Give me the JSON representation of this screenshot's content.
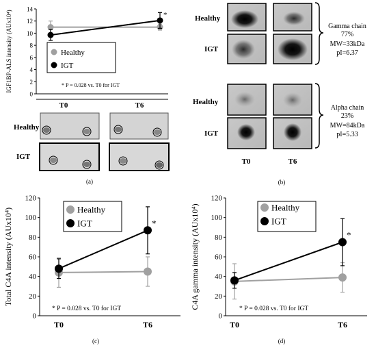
{
  "chart_data": [
    {
      "panel": "(a)",
      "type": "line",
      "ylabel": "IGF1BP-ALS intensity (AUx10⁴)",
      "ylim": [
        0,
        14
      ],
      "yticks": [
        "0",
        "2",
        "4",
        "6",
        "8",
        "10",
        "12",
        "14"
      ],
      "x": [
        "T0",
        "T6"
      ],
      "series": [
        {
          "name": "Healthy",
          "values": [
            11.0,
            11.0
          ],
          "err": [
            1.0,
            0.5
          ],
          "color": "#a0a0a0"
        },
        {
          "name": "IGT",
          "values": [
            9.7,
            12.1
          ],
          "err": [
            0.9,
            1.3
          ],
          "color": "#000000"
        }
      ],
      "significance_mark": "*",
      "footnote": "* P = 0.028 vs. T0 for IGT",
      "blot_labels": {
        "columns": [
          "T0",
          "T6"
        ],
        "rows": [
          "Healthy",
          "IGT"
        ]
      }
    },
    {
      "panel": "(b)",
      "type": "blot",
      "rows": [
        "Healthy",
        "IGT",
        "Healthy",
        "IGT"
      ],
      "columns": [
        "T0",
        "T6"
      ],
      "annotations": [
        {
          "name": "Gamma chain",
          "percent": "77%",
          "mw": "MW=33kDa",
          "pi": "pI=6.37"
        },
        {
          "name": "Alpha chain",
          "percent": "23%",
          "mw": "MW=84kDa",
          "pi": "pI=5.33"
        }
      ]
    },
    {
      "panel": "(c)",
      "type": "line",
      "ylabel": "Total C4A intensity (AUx10⁴)",
      "ylim": [
        0,
        120
      ],
      "yticks": [
        "0",
        "20",
        "40",
        "60",
        "80",
        "100",
        "120"
      ],
      "x": [
        "T0",
        "T6"
      ],
      "series": [
        {
          "name": "Healthy",
          "values": [
            44,
            45
          ],
          "err": [
            15,
            15
          ],
          "color": "#a0a0a0"
        },
        {
          "name": "IGT",
          "values": [
            48,
            87
          ],
          "err": [
            10,
            24
          ],
          "color": "#000000"
        }
      ],
      "significance_mark": "*",
      "footnote": "* P = 0.028 vs. T0 for IGT"
    },
    {
      "panel": "(d)",
      "type": "line",
      "ylabel": "C4A gamma intensity (AUx10⁴)",
      "ylim": [
        0,
        120
      ],
      "yticks": [
        "0",
        "20",
        "40",
        "60",
        "80",
        "100",
        "120"
      ],
      "x": [
        "T0",
        "T6"
      ],
      "series": [
        {
          "name": "Healthy",
          "values": [
            35,
            39
          ],
          "err": [
            18,
            15
          ],
          "color": "#a0a0a0"
        },
        {
          "name": "IGT",
          "values": [
            36,
            75
          ],
          "err": [
            8,
            24
          ],
          "color": "#000000"
        }
      ],
      "significance_mark": "*",
      "footnote": "* P = 0.028 vs. T0 for IGT"
    }
  ]
}
